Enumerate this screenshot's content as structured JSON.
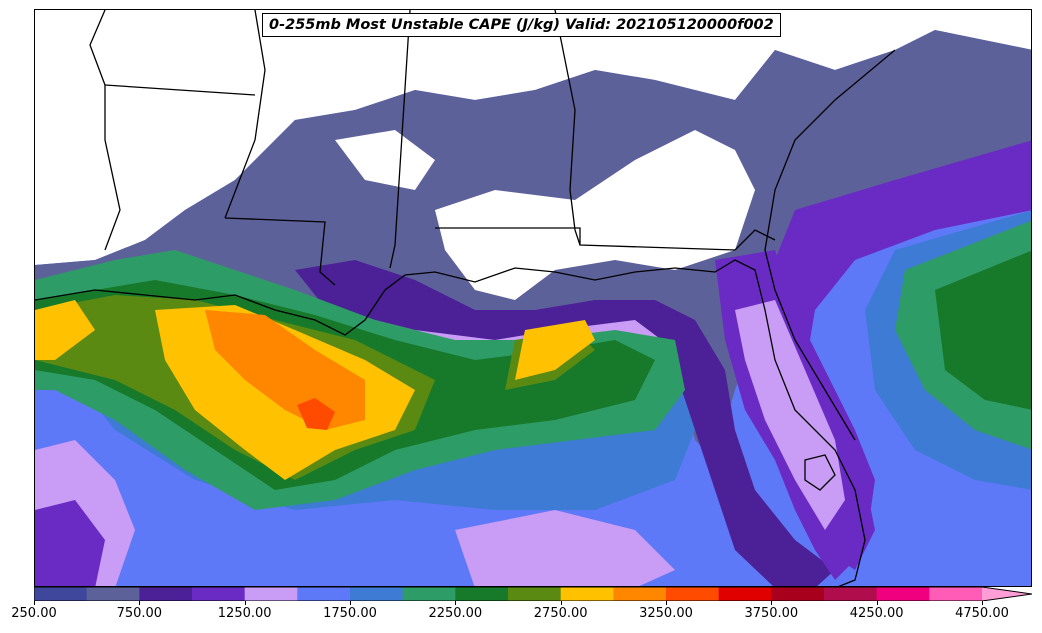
{
  "title": "0-255mb Most Unstable CAPE (J/kg) Valid: 202105120000f002",
  "colorbar": {
    "levels": [
      250,
      500,
      750,
      1000,
      1250,
      1500,
      1750,
      2000,
      2250,
      2500,
      2750,
      3000,
      3250,
      3500,
      3750,
      4000,
      4250,
      4500,
      4750
    ],
    "colors": [
      "#3f479c",
      "#5d6199",
      "#4c2197",
      "#6a2bc4",
      "#c99cf5",
      "#5e79f7",
      "#3d7bd4",
      "#2e9c66",
      "#167a2a",
      "#5a8a12",
      "#ffc100",
      "#ff8700",
      "#ff4b00",
      "#e10000",
      "#a8001c",
      "#b00d4d",
      "#f0007e",
      "#ff5cb8",
      "#ff9ed6"
    ],
    "extend": "max",
    "tick_labels": [
      "250.00",
      "750.00",
      "1250.00",
      "1750.00",
      "2250.00",
      "2750.00",
      "3250.00",
      "3750.00",
      "4250.00",
      "4750.00"
    ]
  }
}
